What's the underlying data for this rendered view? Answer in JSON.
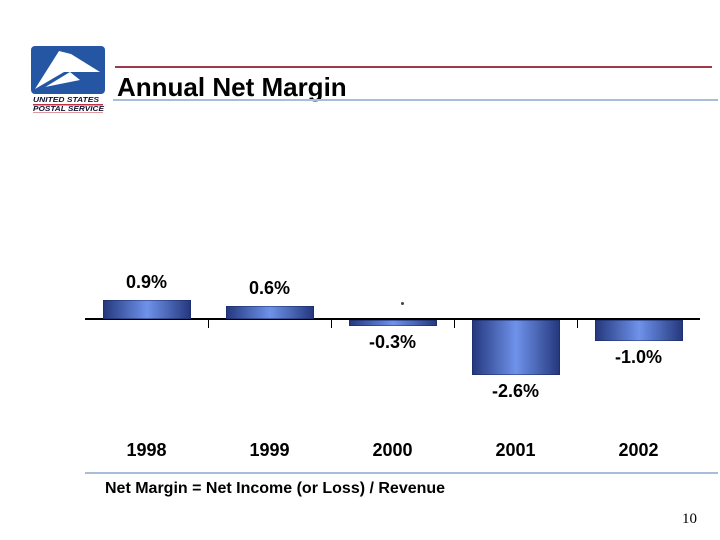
{
  "slide": {
    "title": "Annual Net Margin",
    "footnote": "Net Margin = Net Income (or Loss) / Revenue",
    "page_number": "10"
  },
  "logo": {
    "line1": "UNITED STATES",
    "line2": "POSTAL SERVICE"
  },
  "colors": {
    "accent_red_rule": "#9c3a4a",
    "accent_blue_rule": "#a7bdd9",
    "logo_blue": "#2456a4",
    "logo_underline_red": "#c03040",
    "axis_black": "#000000",
    "bar_edge": "#26397f",
    "bar_mid": "#6f92ea"
  },
  "chart_data": {
    "type": "bar",
    "title": "",
    "xlabel": "",
    "ylabel": "",
    "categories": [
      "1998",
      "1999",
      "2000",
      "2001",
      "2002"
    ],
    "values": [
      0.9,
      0.6,
      -0.3,
      -2.6,
      -1.0
    ],
    "data_labels": [
      "0.9%",
      "0.6%",
      "-0.3%",
      "-2.6%",
      "-1.0%"
    ],
    "ylim": [
      -3.0,
      1.2
    ],
    "grid": false,
    "legend": "none",
    "baseline": 0,
    "bar_color_gradient": [
      "#26397f",
      "#6f92ea",
      "#26397f"
    ],
    "annotations": [
      {
        "text": ".",
        "note": "stray dot artifact above the 2000 bar"
      }
    ]
  }
}
